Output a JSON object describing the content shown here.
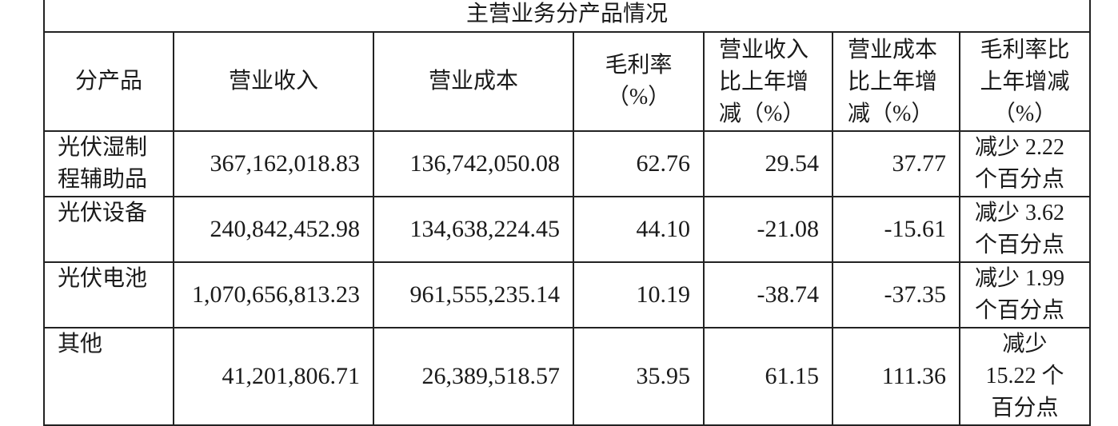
{
  "table": {
    "title": "主营业务分产品情况",
    "headers": [
      "分产品",
      "营业收入",
      "营业成本",
      "毛利率（%）",
      "营业收入比上年增减（%）",
      "营业成本比上年增减（%）",
      "毛利率比上年增减（%）"
    ],
    "rows": [
      {
        "product": "光伏湿制程辅助品",
        "revenue": "367,162,018.83",
        "cost": "136,742,050.08",
        "margin": "62.76",
        "revenue_change": "29.54",
        "cost_change": "37.77",
        "margin_change": "减少 2.22 个百分点"
      },
      {
        "product": "光伏设备",
        "revenue": "240,842,452.98",
        "cost": "134,638,224.45",
        "margin": "44.10",
        "revenue_change": "-21.08",
        "cost_change": "-15.61",
        "margin_change": "减少 3.62 个百分点"
      },
      {
        "product": "光伏电池",
        "revenue": "1,070,656,813.23",
        "cost": "961,555,235.14",
        "margin": "10.19",
        "revenue_change": "-38.74",
        "cost_change": "-37.35",
        "margin_change": "减少 1.99 个百分点"
      },
      {
        "product": "其他",
        "revenue": "41,201,806.71",
        "cost": "26,389,518.57",
        "margin": "35.95",
        "revenue_change": "61.15",
        "cost_change": "111.36",
        "margin_change": "减少 15.22 个百分点"
      }
    ]
  }
}
